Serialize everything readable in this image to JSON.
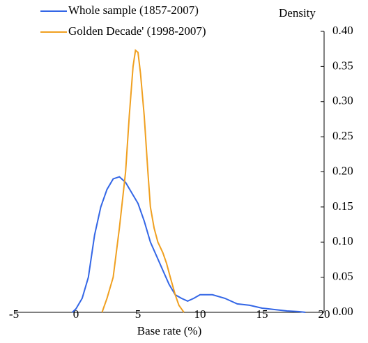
{
  "chart_data": {
    "type": "line",
    "y_axis_label": "Density",
    "x_axis_label": "Base rate (%)",
    "xlim": [
      -5,
      20
    ],
    "xticks": [
      -5,
      0,
      5,
      10,
      15,
      20
    ],
    "ylim": [
      0,
      0.4
    ],
    "yticks": [
      {
        "value": 0,
        "label": "0.00"
      },
      {
        "value": 0.05,
        "label": "0.05"
      },
      {
        "value": 0.1,
        "label": "0.10"
      },
      {
        "value": 0.15,
        "label": "0.15"
      },
      {
        "value": 0.2,
        "label": "0.20"
      },
      {
        "value": 0.25,
        "label": "0.25"
      },
      {
        "value": 0.3,
        "label": "0.30"
      },
      {
        "value": 0.35,
        "label": "0.35"
      },
      {
        "value": 0.4,
        "label": "0.40"
      }
    ],
    "series": [
      {
        "name": "Whole sample (1857-2007)",
        "color": "#3366e6",
        "x": [
          -0.3,
          0,
          0.5,
          1,
          1.5,
          2,
          2.5,
          3,
          3.5,
          4,
          4.5,
          5,
          5.5,
          6,
          6.5,
          7,
          7.5,
          8,
          8.5,
          9,
          9.5,
          10,
          11,
          12,
          13,
          14,
          15,
          16,
          17,
          18,
          18.5
        ],
        "values": [
          0,
          0.005,
          0.02,
          0.05,
          0.11,
          0.15,
          0.175,
          0.19,
          0.193,
          0.185,
          0.17,
          0.155,
          0.13,
          0.1,
          0.08,
          0.06,
          0.04,
          0.025,
          0.02,
          0.016,
          0.02,
          0.025,
          0.025,
          0.02,
          0.012,
          0.01,
          0.006,
          0.004,
          0.002,
          0.001,
          0
        ]
      },
      {
        "name": "Golden Decade' (1998-2007)",
        "color": "#f0a020",
        "x": [
          2.1,
          2.5,
          3,
          3.5,
          4,
          4.3,
          4.6,
          4.8,
          5,
          5.2,
          5.5,
          5.8,
          6,
          6.3,
          6.6,
          7,
          7.3,
          7.6,
          8,
          8.3,
          8.7
        ],
        "values": [
          0,
          0.02,
          0.05,
          0.12,
          0.2,
          0.28,
          0.35,
          0.373,
          0.37,
          0.34,
          0.28,
          0.2,
          0.15,
          0.12,
          0.1,
          0.085,
          0.07,
          0.05,
          0.025,
          0.01,
          0
        ]
      }
    ]
  }
}
